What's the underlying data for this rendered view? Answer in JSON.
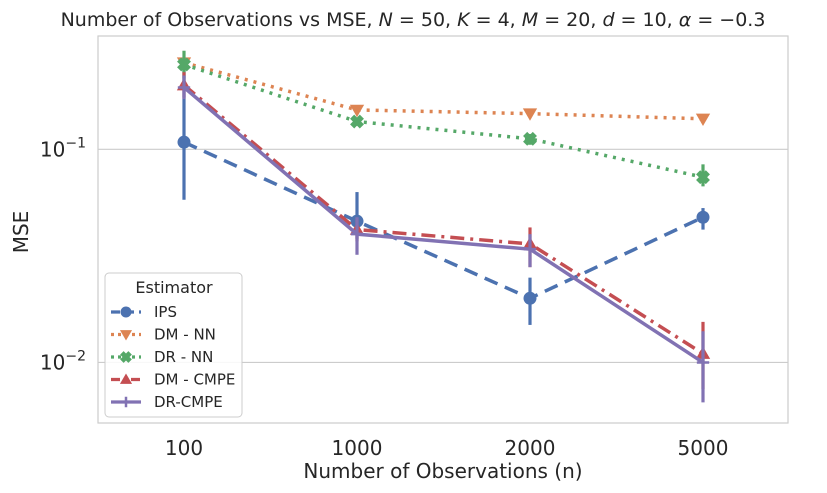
{
  "chart_data": {
    "type": "line",
    "title": "Number of Observations vs MSE, N = 50, K = 4, M = 20, d = 10, α = −0.3",
    "title_parts": [
      {
        "text": "Number of Observations vs MSE, ",
        "italic": false
      },
      {
        "text": "N",
        "italic": true
      },
      {
        "text": " = 50, ",
        "italic": false
      },
      {
        "text": "K",
        "italic": true
      },
      {
        "text": " = 4, ",
        "italic": false
      },
      {
        "text": "M",
        "italic": true
      },
      {
        "text": " = 20, ",
        "italic": false
      },
      {
        "text": "d",
        "italic": true
      },
      {
        "text": " = 10, ",
        "italic": false
      },
      {
        "text": "α",
        "italic": true
      },
      {
        "text": " = −0.3",
        "italic": false
      }
    ],
    "xlabel": "Number of Observations (n)",
    "ylabel": "MSE",
    "categories": [
      "100",
      "1000",
      "2000",
      "5000"
    ],
    "y_scale": "log",
    "ylim": [
      0.0052,
      0.34
    ],
    "y_ticks": [
      {
        "value": 0.1,
        "base": "10",
        "exp": "−1"
      },
      {
        "value": 0.01,
        "base": "10",
        "exp": "−2"
      }
    ],
    "grid": "horizontal",
    "legend": {
      "title": "Estimator",
      "position": "lower-left"
    },
    "series": [
      {
        "name": "IPS",
        "color": "#4c72b0",
        "marker": "circle",
        "dash": "dashed",
        "values": [
          0.108,
          0.046,
          0.02,
          0.048
        ],
        "err_low": [
          0.058,
          0.038,
          0.015,
          0.042
        ],
        "err_high": [
          0.245,
          0.063,
          0.025,
          0.053
        ]
      },
      {
        "name": "DM - NN",
        "color": "#dd8452",
        "marker": "triangle-down",
        "dash": "dotted",
        "values": [
          0.255,
          0.153,
          0.147,
          0.139
        ],
        "err_low": null,
        "err_high": null
      },
      {
        "name": "DR - NN",
        "color": "#55a868",
        "marker": "x",
        "dash": "dotted",
        "values": [
          0.25,
          0.135,
          0.112,
          0.074
        ],
        "err_low": [
          0.215,
          0.129,
          0.105,
          0.067
        ],
        "err_high": [
          0.29,
          0.14,
          0.118,
          0.085
        ]
      },
      {
        "name": "DM - CMPE",
        "color": "#c44e52",
        "marker": "triangle-up",
        "dash": "dashdot",
        "values": [
          0.2,
          0.042,
          0.036,
          0.011
        ],
        "err_low": [
          0.175,
          0.037,
          0.028,
          0.0075
        ],
        "err_high": [
          0.23,
          0.047,
          0.043,
          0.0155
        ]
      },
      {
        "name": "DR-CMPE",
        "color": "#8172b3",
        "marker": "plus",
        "dash": "solid",
        "values": [
          0.195,
          0.04,
          0.034,
          0.01
        ],
        "err_low": [
          0.172,
          0.032,
          0.028,
          0.0065
        ],
        "err_high": [
          0.222,
          0.048,
          0.04,
          0.014
        ]
      }
    ]
  }
}
